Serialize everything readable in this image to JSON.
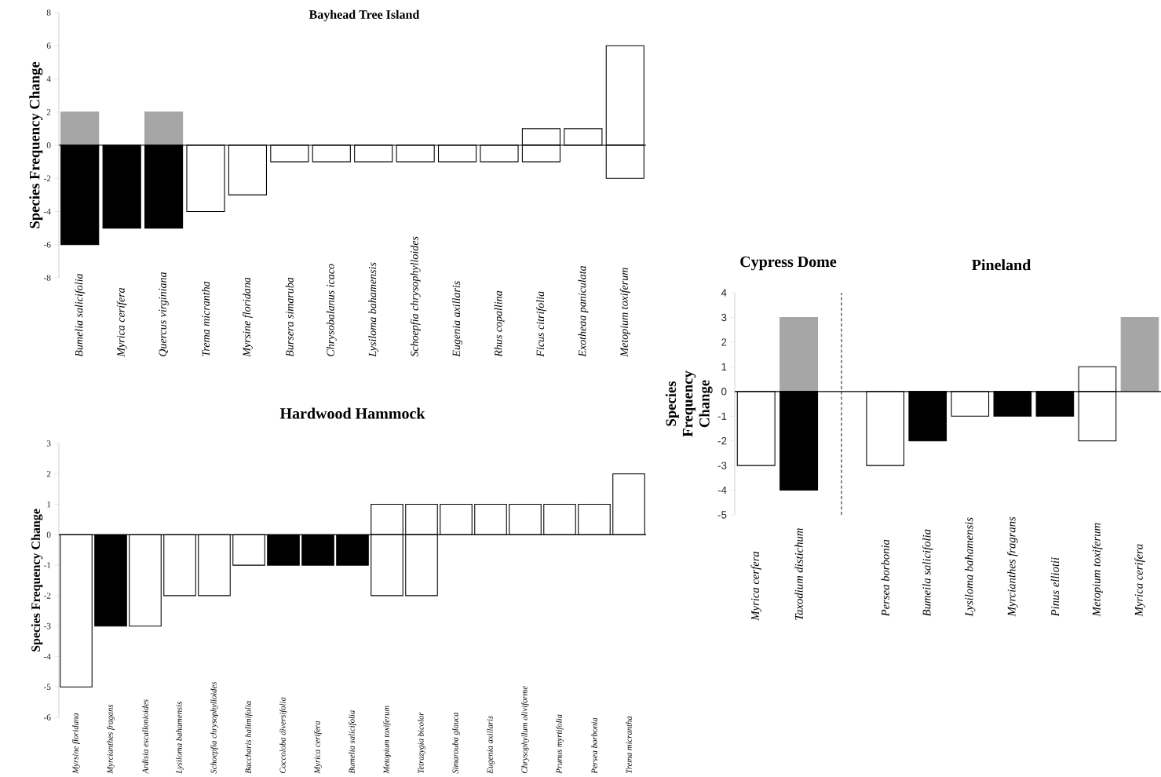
{
  "chart_data": [
    {
      "type": "bar",
      "title": "Bayhead Tree Island",
      "ylabel": "Species Frequency Change",
      "categories": [
        "Bumelia salicifolia",
        "Myrica cerífera",
        "Quercus virginiana",
        "Trema micrantha",
        "Myrsine floridana",
        "Bursera simaruba",
        "Chrysobalanus icaco",
        "Lysiloma bahamensis",
        "Schoepfia chrysophylloides",
        "Eugenia axillaris",
        "Rhus copallina",
        "Ficus citrifolia",
        "Exotheaa paniculata",
        "Metopium toxiferum"
      ],
      "series": [
        {
          "values": [
            2,
            null,
            2,
            null,
            null,
            null,
            null,
            null,
            null,
            null,
            null,
            1,
            1,
            6
          ],
          "colors": [
            "#a6a6a6",
            null,
            "#a6a6a6",
            null,
            null,
            null,
            null,
            null,
            null,
            null,
            null,
            "#ffffff",
            "#ffffff",
            "#ffffff"
          ]
        },
        {
          "values": [
            -6,
            -5,
            -5,
            -4,
            -3,
            -1,
            -1,
            -1,
            -1,
            -1,
            -1,
            -1,
            null,
            -2
          ],
          "colors": [
            "#000000",
            "#000000",
            "#000000",
            "#ffffff",
            "#ffffff",
            "#ffffff",
            "#ffffff",
            "#ffffff",
            "#ffffff",
            "#ffffff",
            "#ffffff",
            "#ffffff",
            null,
            "#ffffff"
          ]
        }
      ],
      "stacked": true,
      "ylim": [
        -8,
        8
      ],
      "yticks": [
        -8,
        -6,
        -4,
        -2,
        0,
        2,
        4,
        6,
        8
      ]
    },
    {
      "type": "bar",
      "title": "Hardwood Hammock",
      "ylabel": "Species Frequency Change",
      "categories": [
        "Myrsine floridana",
        "Myrcianthes fragans",
        "Ardisia escallonioides",
        "Lysiloma bahamensis",
        "Schoepfia chrysophylloides",
        "Baccharis halimifolia",
        "Coccoloba diversifolia",
        "Myrica cerifera",
        "Bumelia salicifolia",
        "Metopium toxiferum",
        "Tetrazygia bicolor",
        "Simarouba glauca",
        "Eugenia axillaris",
        "Chrysophyllum oliviforme",
        "Prunus myrtifolia",
        "Persea borbonia",
        "Trema micrantha"
      ],
      "series": [
        {
          "values": [
            null,
            null,
            null,
            null,
            null,
            null,
            null,
            null,
            null,
            1,
            1,
            1,
            1,
            1,
            1,
            1,
            2
          ],
          "colors": [
            null,
            null,
            null,
            null,
            null,
            null,
            null,
            null,
            null,
            "#ffffff",
            "#ffffff",
            "#ffffff",
            "#ffffff",
            "#ffffff",
            "#ffffff",
            "#ffffff",
            "#ffffff"
          ]
        },
        {
          "values": [
            -5,
            -3,
            -3,
            -2,
            -2,
            -1,
            -1,
            -1,
            -1,
            -2,
            -2,
            null,
            null,
            null,
            null,
            null,
            null
          ],
          "colors": [
            "#ffffff",
            "#000000",
            "#ffffff",
            "#ffffff",
            "#ffffff",
            "#ffffff",
            "#000000",
            "#000000",
            "#000000",
            "#ffffff",
            "#ffffff",
            null,
            null,
            null,
            null,
            null,
            null
          ]
        }
      ],
      "stacked": true,
      "ylim": [
        -6,
        3
      ],
      "yticks": [
        -6,
        -5,
        -4,
        -3,
        -2,
        -1,
        0,
        1,
        2,
        3
      ]
    },
    {
      "type": "bar",
      "title": "Cypress Dome",
      "ylabel": "Species Frequency Change",
      "categories": [
        "Myrica cerfera",
        "Taxodium distichum"
      ],
      "series": [
        {
          "values": [
            null,
            3
          ],
          "colors": [
            null,
            "#a6a6a6"
          ]
        },
        {
          "values": [
            -3,
            -4
          ],
          "colors": [
            "#ffffff",
            "#000000"
          ]
        }
      ],
      "stacked": true,
      "ylim": [
        -5,
        4
      ],
      "yticks": [
        -5,
        -4,
        -3,
        -2,
        -1,
        0,
        1,
        2,
        3,
        4
      ]
    },
    {
      "type": "bar",
      "title": "Pineland",
      "tick_labels": "x",
      "categories": [
        "Persea borbonia",
        "Bumeila salicifolia",
        "Lysiloma bahamensis",
        "Myrcianthes fragrans",
        "Pinus elliotii",
        "Metopium toxiferum",
        "Myrica cerifera"
      ],
      "series": [
        {
          "values": [
            null,
            null,
            null,
            null,
            null,
            1,
            3
          ],
          "colors": [
            null,
            null,
            null,
            null,
            null,
            "#ffffff",
            "#a6a6a6"
          ]
        },
        {
          "values": [
            -3,
            -2,
            -1,
            -1,
            -1,
            -2,
            null
          ],
          "colors": [
            "#ffffff",
            "#000000",
            "#ffffff",
            "#000000",
            "#000000",
            "#ffffff",
            null
          ]
        }
      ],
      "stacked": true,
      "ylim": [
        -5,
        4
      ]
    }
  ]
}
